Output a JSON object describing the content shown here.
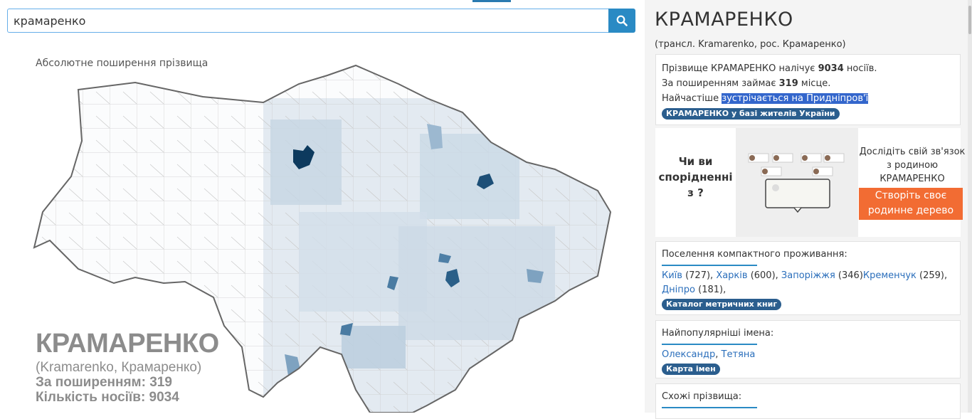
{
  "search": {
    "value": "крамаренко"
  },
  "map": {
    "caption": "Абсолютне поширення прізвища",
    "overlay_name": "КРАМАРЕНКО",
    "overlay_translit": "(Kramarenko, Крамаренко)",
    "overlay_rank": "За поширенням: 319",
    "overlay_count": "Кількість носіїв:  9034"
  },
  "info": {
    "title": "КРАМАРЕНКО",
    "translit": "(трансл. Kramarenko, рос. Крамаренко)",
    "line1_pre": "Прізвище КРАМАРЕНКО налічує ",
    "count": "9034",
    "line1_post": " носіїв.",
    "line2_pre": "За поширенням займає ",
    "rank": "319",
    "line2_post": " місце.",
    "line3_pre": "Найчастіше ",
    "line3_hl": "зустрічається на Придніпров'ї",
    "badge": "КРАМАРЕНКО у базі жителів України"
  },
  "promo": {
    "question": "Чи ви спорідненні з ?",
    "explore": "Дослідіть свій зв'язок з родиною КРАМАРЕНКО",
    "cta": "Створіть своє родинне дерево"
  },
  "settlements": {
    "heading": "Поселення компактного проживання:",
    "items": [
      {
        "name": "Київ",
        "count": " (727), "
      },
      {
        "name": "Харків",
        "count": " (600), "
      },
      {
        "name": "Запоріжжя",
        "count": " (346)"
      },
      {
        "name": "Кременчук",
        "count": " (259),"
      },
      {
        "name": "Дніпро",
        "count": " (181),"
      }
    ],
    "badge": "Каталог метричних книг"
  },
  "names": {
    "heading": "Найпопулярніші імена:",
    "items": [
      "Олександр",
      "Тетяна"
    ],
    "badge": "Карта імен"
  },
  "similar": {
    "heading": "Схожі прізвища:"
  },
  "colors": {
    "accent": "#2a8ac4",
    "badge": "#2b5e8e",
    "cta": "#f26c33",
    "highlight": "#3366cc"
  },
  "icons": {
    "search": "search-icon"
  }
}
